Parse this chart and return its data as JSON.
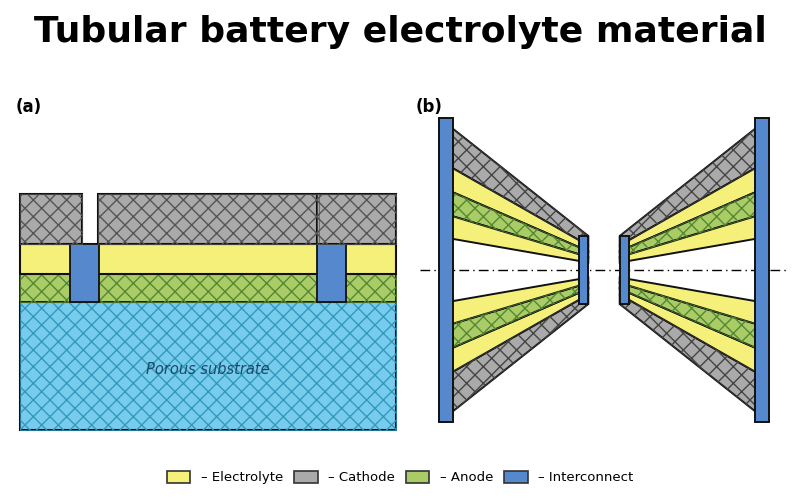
{
  "title": "Tubular battery electrolyte material",
  "title_fontsize": 26,
  "bg_color": "#ffffff",
  "label_a": "(a)",
  "label_b": "(b)",
  "colors": {
    "electrolyte": "#F5F07A",
    "cathode": "#AAAAAA",
    "anode": "#AACC66",
    "interconnect": "#5588CC",
    "substrate": "#77CCEE",
    "outline": "#111111"
  },
  "legend_items": [
    {
      "label": "Electrolyte",
      "color": "#F5F07A"
    },
    {
      "label": "Cathode",
      "color": "#AAAAAA"
    },
    {
      "label": "Anode",
      "color": "#AACC66"
    },
    {
      "label": "Interconnect",
      "color": "#5588CC"
    }
  ]
}
